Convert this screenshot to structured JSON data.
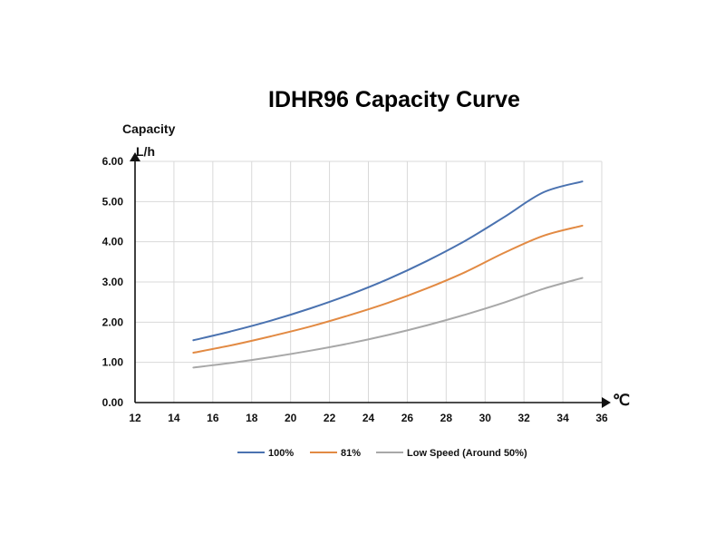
{
  "chart_data": {
    "type": "line",
    "title": "IDHR96  Capacity Curve",
    "ylabel_line1": "Capacity",
    "ylabel_line2": "L/h",
    "xlabel": "℃",
    "xlim": [
      12,
      36
    ],
    "ylim": [
      0,
      6
    ],
    "x_ticks": [
      12,
      14,
      16,
      18,
      20,
      22,
      24,
      26,
      28,
      30,
      32,
      34,
      36
    ],
    "y_ticks": [
      "0.00",
      "1.00",
      "2.00",
      "3.00",
      "4.00",
      "5.00",
      "6.00"
    ],
    "grid": true,
    "legend_position": "bottom",
    "x": [
      15,
      17,
      19,
      21,
      23,
      25,
      27,
      29,
      31,
      33,
      35
    ],
    "series": [
      {
        "name": "100%",
        "color": "#4a72b0",
        "values": [
          1.55,
          1.78,
          2.04,
          2.34,
          2.68,
          3.07,
          3.52,
          4.03,
          4.62,
          5.23,
          5.5
        ]
      },
      {
        "name": "81%",
        "color": "#e28a43",
        "values": [
          1.24,
          1.43,
          1.65,
          1.89,
          2.17,
          2.48,
          2.84,
          3.25,
          3.73,
          4.15,
          4.4
        ]
      },
      {
        "name": "Low Speed (Around 50%)",
        "color": "#a8a8a8",
        "values": [
          0.87,
          0.99,
          1.13,
          1.29,
          1.47,
          1.68,
          1.92,
          2.19,
          2.49,
          2.83,
          3.1
        ]
      }
    ]
  }
}
